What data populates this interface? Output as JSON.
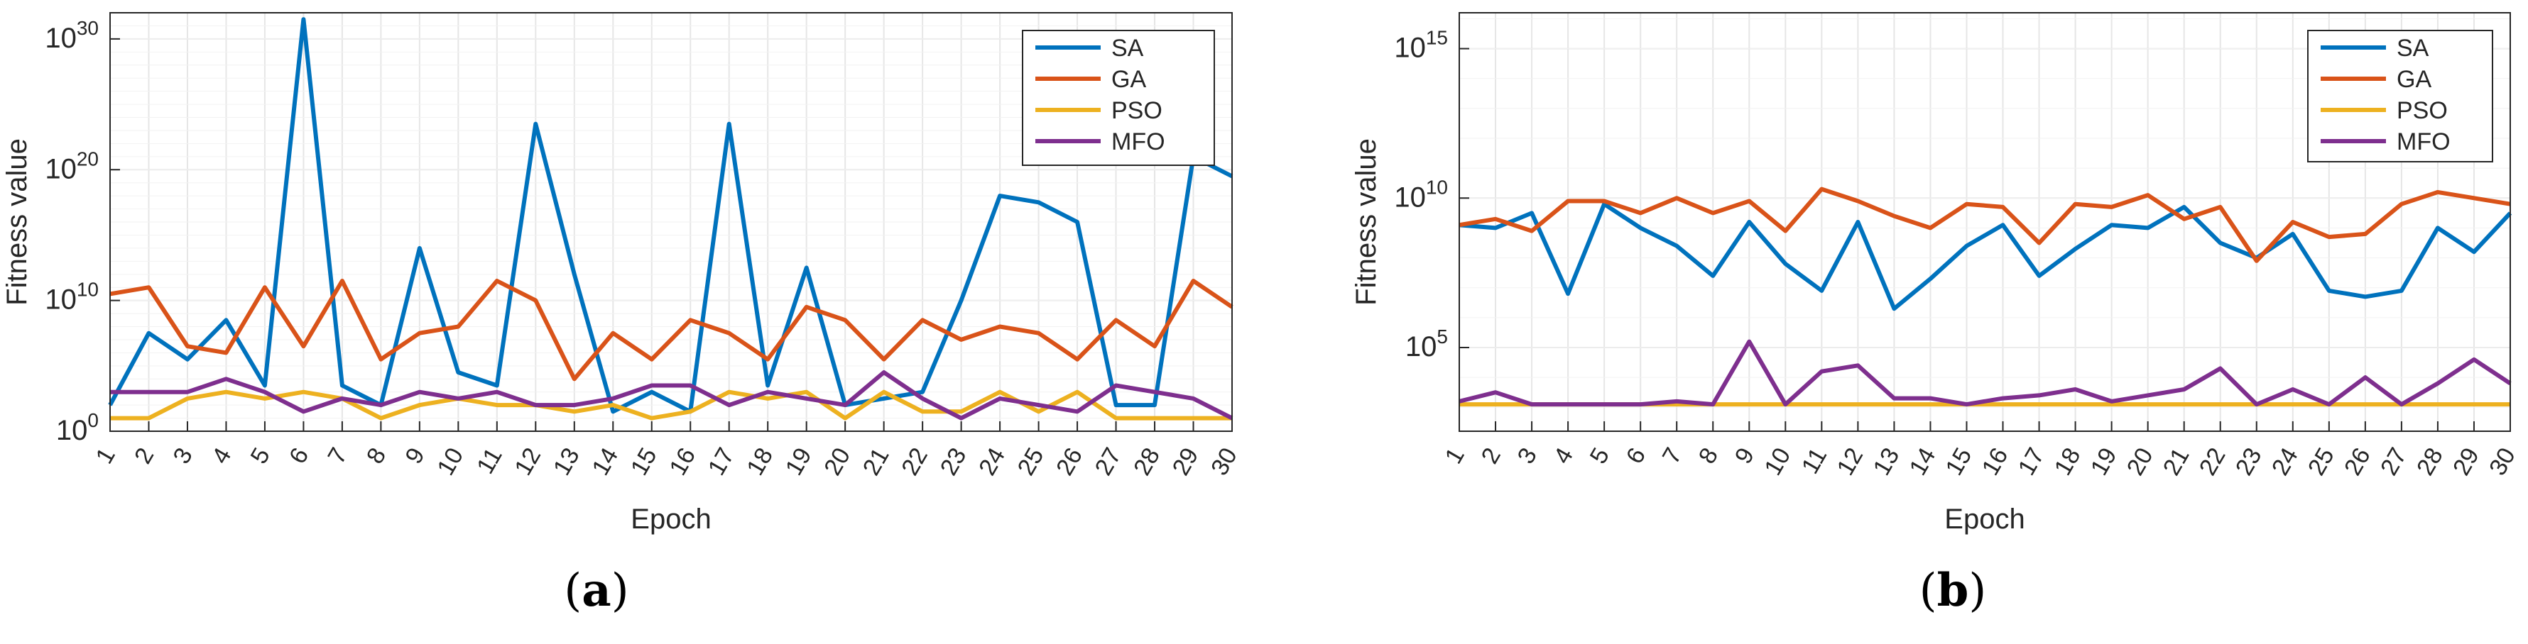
{
  "charts": [
    {
      "caption": "(a)",
      "caption_letter": "a",
      "chart_data": {
        "type": "line",
        "xlabel": "Epoch",
        "ylabel": "Fitness value",
        "yscale": "log",
        "ylim_exponents": [
          0,
          32
        ],
        "ytick_exponents": [
          0,
          10,
          20,
          30
        ],
        "categories": [
          1,
          2,
          3,
          4,
          5,
          6,
          7,
          8,
          9,
          10,
          11,
          12,
          13,
          14,
          15,
          16,
          17,
          18,
          19,
          20,
          21,
          22,
          23,
          24,
          25,
          26,
          27,
          28,
          29,
          30
        ],
        "legend_position": "top-right",
        "grid": true,
        "series": [
          {
            "name": "SA",
            "color": "#0072BD",
            "log10_values": [
              2,
              7.5,
              5.5,
              8.5,
              3.5,
              31.5,
              3.5,
              2,
              14,
              4.5,
              3.5,
              23.5,
              12,
              1.5,
              3,
              1.5,
              23.5,
              3.5,
              12.5,
              2,
              2.5,
              3,
              10,
              18,
              17.5,
              16,
              2,
              2,
              21,
              19.5
            ]
          },
          {
            "name": "GA",
            "color": "#D95319",
            "log10_values": [
              10.5,
              11,
              6.5,
              6,
              11,
              6.5,
              11.5,
              5.5,
              7.5,
              8,
              11.5,
              10,
              4,
              7.5,
              5.5,
              8.5,
              7.5,
              5.5,
              9.5,
              8.5,
              5.5,
              8.5,
              7,
              8,
              7.5,
              5.5,
              8.5,
              6.5,
              11.5,
              9.5
            ]
          },
          {
            "name": "PSO",
            "color": "#EDB120",
            "log10_values": [
              1,
              1,
              2.5,
              3,
              2.5,
              3,
              2.5,
              1,
              2,
              2.5,
              2,
              2,
              1.5,
              2,
              1,
              1.5,
              3,
              2.5,
              3,
              1,
              3,
              1.5,
              1.5,
              3,
              1.5,
              3,
              1,
              1,
              1,
              1
            ]
          },
          {
            "name": "MFO",
            "color": "#7E2F8E",
            "log10_values": [
              3,
              3,
              3,
              4,
              3,
              1.5,
              2.5,
              2,
              3,
              2.5,
              3,
              2,
              2,
              2.5,
              3.5,
              3.5,
              2,
              3,
              2.5,
              2,
              4.5,
              2.5,
              1,
              2.5,
              2,
              1.5,
              3.5,
              3,
              2.5,
              1
            ]
          }
        ]
      }
    },
    {
      "caption": "(b)",
      "caption_letter": "b",
      "chart_data": {
        "type": "line",
        "xlabel": "Epoch",
        "ylabel": "Fitness value",
        "yscale": "log",
        "ylim_exponents": [
          2.2,
          16.2
        ],
        "ytick_exponents": [
          5,
          10,
          15
        ],
        "categories": [
          1,
          2,
          3,
          4,
          5,
          6,
          7,
          8,
          9,
          10,
          11,
          12,
          13,
          14,
          15,
          16,
          17,
          18,
          19,
          20,
          21,
          22,
          23,
          24,
          25,
          26,
          27,
          28,
          29,
          30
        ],
        "legend_position": "top-right",
        "grid": true,
        "series": [
          {
            "name": "SA",
            "color": "#0072BD",
            "log10_values": [
              9.1,
              9,
              9.5,
              6.8,
              9.8,
              9,
              8.4,
              7.4,
              9.2,
              7.8,
              6.9,
              9.2,
              6.3,
              7.3,
              8.4,
              9.1,
              7.4,
              8.3,
              9.1,
              9,
              9.7,
              8.5,
              8,
              8.8,
              6.9,
              6.7,
              6.9,
              9,
              8.2,
              9.5
            ]
          },
          {
            "name": "GA",
            "color": "#D95319",
            "log10_values": [
              9.1,
              9.3,
              8.9,
              9.9,
              9.9,
              9.5,
              10,
              9.5,
              9.9,
              8.9,
              10.3,
              9.9,
              9.4,
              9,
              9.8,
              9.7,
              8.5,
              9.8,
              9.7,
              10.1,
              9.3,
              9.7,
              7.9,
              9.2,
              8.7,
              8.8,
              9.8,
              10.2,
              10,
              9.8
            ]
          },
          {
            "name": "PSO",
            "color": "#EDB120",
            "log10_values": [
              3.1,
              3.1,
              3.1,
              3.1,
              3.1,
              3.1,
              3.1,
              3.1,
              3.1,
              3.1,
              3.1,
              3.1,
              3.1,
              3.1,
              3.1,
              3.1,
              3.1,
              3.1,
              3.1,
              3.1,
              3.1,
              3.1,
              3.1,
              3.1,
              3.1,
              3.1,
              3.1,
              3.1,
              3.1,
              3.1
            ]
          },
          {
            "name": "MFO",
            "color": "#7E2F8E",
            "log10_values": [
              3.2,
              3.5,
              3.1,
              3.1,
              3.1,
              3.1,
              3.2,
              3.1,
              5.2,
              3.1,
              4.2,
              4.4,
              3.3,
              3.3,
              3.1,
              3.3,
              3.4,
              3.6,
              3.2,
              3.4,
              3.6,
              4.3,
              3.1,
              3.6,
              3.1,
              4,
              3.1,
              3.8,
              4.6,
              3.8
            ]
          }
        ]
      }
    }
  ]
}
